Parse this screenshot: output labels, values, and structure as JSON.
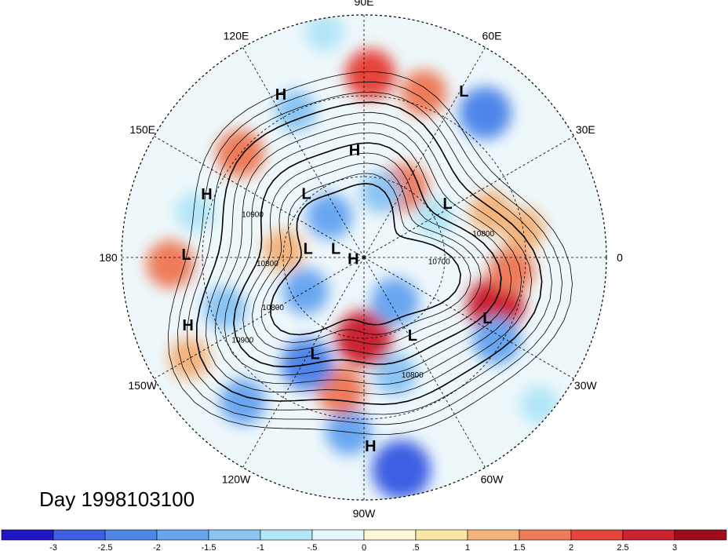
{
  "title": "Day 1998103100",
  "longitude_labels": [
    "90E",
    "60E",
    "30E",
    "0",
    "30W",
    "60W",
    "90W",
    "120W",
    "150W",
    "180",
    "150E",
    "120E"
  ],
  "pressure_systems": [
    {
      "type": "H",
      "lon": 117,
      "lat": 22
    },
    {
      "type": "H",
      "lon": 95,
      "lat": 50
    },
    {
      "type": "L",
      "lon": 59,
      "lat": 18
    },
    {
      "type": "H",
      "lon": 158,
      "lat": 27
    },
    {
      "type": "L",
      "lon": 132,
      "lat": 58
    },
    {
      "type": "L",
      "lon": 33,
      "lat": 53
    },
    {
      "type": "L",
      "lon": 179,
      "lat": 24
    },
    {
      "type": "L",
      "lon": 171,
      "lat": 69
    },
    {
      "type": "L",
      "lon": 162,
      "lat": 79
    },
    {
      "type": "H",
      "lon": -173,
      "lat": 86
    },
    {
      "type": "H",
      "lon": -159,
      "lat": 20
    },
    {
      "type": "L",
      "lon": -26,
      "lat": 39
    },
    {
      "type": "L",
      "lon": -58,
      "lat": 56
    },
    {
      "type": "L",
      "lon": -117,
      "lat": 50
    },
    {
      "type": "H",
      "lon": -88,
      "lat": 20
    }
  ],
  "contour_labels": [
    {
      "text": "10900",
      "lon": 160,
      "lat": 46
    },
    {
      "text": "10800",
      "lon": -175,
      "lat": 54
    },
    {
      "text": "10800",
      "lon": -150,
      "lat": 51
    },
    {
      "text": "10900",
      "lon": -145,
      "lat": 35
    },
    {
      "text": "10800",
      "lon": -68,
      "lat": 42
    },
    {
      "text": "10700",
      "lon": -5,
      "lat": 62
    },
    {
      "text": "10800",
      "lon": 10,
      "lat": 45
    }
  ],
  "colorbar": {
    "ticks": [
      "-3",
      "-2.5",
      "-2",
      "-1.5",
      "-1",
      "-.5",
      "0",
      ".5",
      "1",
      "1.5",
      "2",
      "2.5",
      "3"
    ],
    "colors": [
      "#2115c6",
      "#3d5fe3",
      "#4f86e8",
      "#69a6f0",
      "#8bc4f3",
      "#b4e6f7",
      "#e6f7fb",
      "#fdf7d6",
      "#fae7a3",
      "#f3b37b",
      "#ee7c5a",
      "#e5443b",
      "#cd2230",
      "#9f0d1a"
    ]
  },
  "anomaly_blobs": [
    {
      "lon": -80,
      "lat": 10,
      "v": -2.8
    },
    {
      "lon": -95,
      "lat": 25,
      "v": -1.6
    },
    {
      "lon": -100,
      "lat": 40,
      "v": 1.8
    },
    {
      "lon": -118,
      "lat": 45,
      "v": -2.2
    },
    {
      "lon": -90,
      "lat": 60,
      "v": 2.5
    },
    {
      "lon": -55,
      "lat": 70,
      "v": -1.8
    },
    {
      "lon": -20,
      "lat": 38,
      "v": 2.6
    },
    {
      "lon": -32,
      "lat": 32,
      "v": -1.8
    },
    {
      "lon": -5,
      "lat": 35,
      "v": 1.6
    },
    {
      "lon": 10,
      "lat": 30,
      "v": 1.4
    },
    {
      "lon": 20,
      "lat": 40,
      "v": 1.2
    },
    {
      "lon": 50,
      "lat": 20,
      "v": -2.2
    },
    {
      "lon": 70,
      "lat": 25,
      "v": 1.6
    },
    {
      "lon": 88,
      "lat": 22,
      "v": 2.0
    },
    {
      "lon": 115,
      "lat": 30,
      "v": -1.2
    },
    {
      "lon": 140,
      "lat": 30,
      "v": 1.8
    },
    {
      "lon": 165,
      "lat": 25,
      "v": -1.0
    },
    {
      "lon": -178,
      "lat": 18,
      "v": 1.8
    },
    {
      "lon": -150,
      "lat": 15,
      "v": 1.2
    },
    {
      "lon": -160,
      "lat": 35,
      "v": -1.4
    },
    {
      "lon": 175,
      "lat": 60,
      "v": 1.2
    },
    {
      "lon": -150,
      "lat": 65,
      "v": -1.6
    },
    {
      "lon": 130,
      "lat": 70,
      "v": -1.6
    },
    {
      "lon": 60,
      "lat": 60,
      "v": 1.8
    },
    {
      "lon": 75,
      "lat": 65,
      "v": -1.2
    },
    {
      "lon": 30,
      "lat": 60,
      "v": -1.0
    },
    {
      "lon": -75,
      "lat": 45,
      "v": -1.3
    },
    {
      "lon": -130,
      "lat": 20,
      "v": -1.6
    },
    {
      "lon": 100,
      "lat": 5,
      "v": -1.0
    },
    {
      "lon": -40,
      "lat": 5,
      "v": -1.0
    }
  ]
}
